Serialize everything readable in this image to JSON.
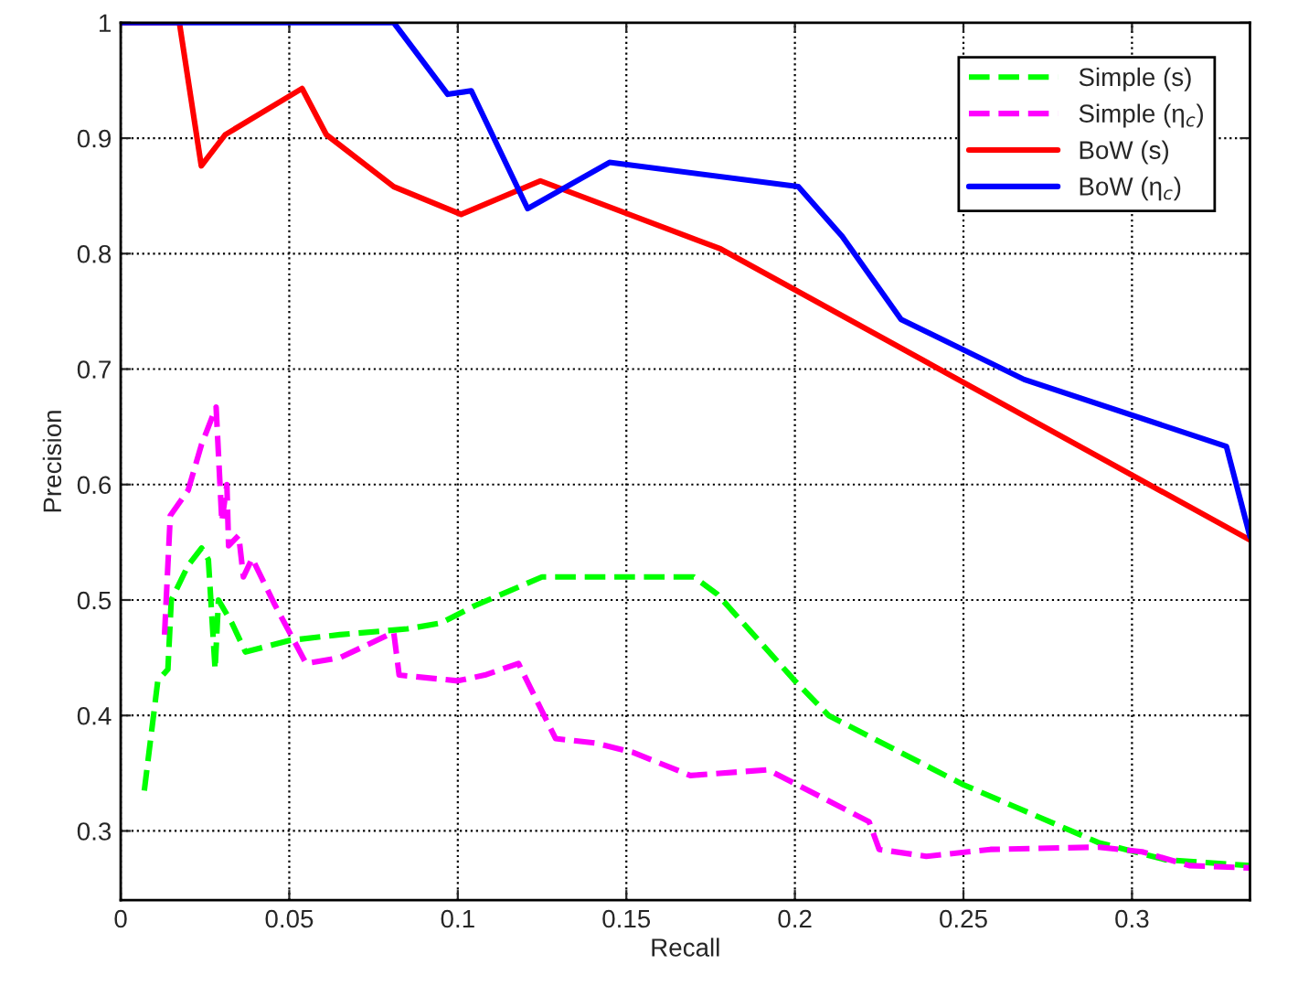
{
  "chart_data": {
    "type": "line",
    "xlabel": "Recall",
    "ylabel": "Precision",
    "xlim": [
      0,
      0.335
    ],
    "ylim": [
      0.24,
      1
    ],
    "xticks": [
      0,
      0.05,
      0.1,
      0.15,
      0.2,
      0.25,
      0.3
    ],
    "yticks": [
      0.3,
      0.4,
      0.5,
      0.6,
      0.7,
      0.8,
      0.9,
      1
    ],
    "grid": true,
    "legend": "top right",
    "series": [
      {
        "name": "Simple (s)",
        "color": "#00ff00",
        "line_style": "dashed",
        "x": [
          0.007,
          0.011,
          0.014,
          0.015,
          0.02,
          0.024,
          0.026,
          0.028,
          0.029,
          0.033,
          0.037,
          0.05,
          0.065,
          0.085,
          0.095,
          0.105,
          0.125,
          0.14,
          0.17,
          0.177,
          0.2,
          0.21,
          0.25,
          0.29,
          0.31,
          0.335
        ],
        "values": [
          0.335,
          0.43,
          0.44,
          0.5,
          0.53,
          0.545,
          0.535,
          0.44,
          0.5,
          0.48,
          0.455,
          0.465,
          0.47,
          0.475,
          0.48,
          0.495,
          0.52,
          0.52,
          0.52,
          0.505,
          0.43,
          0.4,
          0.34,
          0.29,
          0.275,
          0.27
        ]
      },
      {
        "name": "Simple (η$_{c}$)",
        "color": "#ff00ff",
        "line_style": "dashed",
        "x": [
          0.013,
          0.0147,
          0.02,
          0.024,
          0.0283,
          0.03,
          0.0315,
          0.032,
          0.035,
          0.0364,
          0.039,
          0.0457,
          0.055,
          0.065,
          0.081,
          0.0826,
          0.1,
          0.108,
          0.118,
          0.129,
          0.141,
          0.152,
          0.169,
          0.192,
          0.222,
          0.225,
          0.239,
          0.258,
          0.29,
          0.303,
          0.317,
          0.335
        ],
        "values": [
          0.47,
          0.573,
          0.595,
          0.635,
          0.667,
          0.568,
          0.6,
          0.547,
          0.556,
          0.52,
          0.536,
          0.496,
          0.445,
          0.45,
          0.472,
          0.435,
          0.43,
          0.435,
          0.445,
          0.38,
          0.376,
          0.368,
          0.348,
          0.353,
          0.308,
          0.284,
          0.278,
          0.284,
          0.286,
          0.282,
          0.27,
          0.268
        ]
      },
      {
        "name": "BoW (s)",
        "color": "#ff0000",
        "line_style": "solid",
        "x": [
          0,
          0.0174,
          0.0239,
          0.031,
          0.0538,
          0.061,
          0.081,
          0.101,
          0.1245,
          0.178,
          0.335
        ],
        "values": [
          1,
          1,
          0.876,
          0.903,
          0.943,
          0.903,
          0.858,
          0.834,
          0.863,
          0.804,
          0.552
        ]
      },
      {
        "name": "BoW (η$_{c}$)",
        "color": "#0000ff",
        "line_style": "solid",
        "x": [
          0,
          0.081,
          0.097,
          0.104,
          0.1207,
          0.145,
          0.201,
          0.214,
          0.2315,
          0.268,
          0.328,
          0.335
        ],
        "values": [
          1,
          1,
          0.938,
          0.941,
          0.839,
          0.879,
          0.858,
          0.815,
          0.743,
          0.691,
          0.633,
          0.555
        ]
      }
    ]
  }
}
